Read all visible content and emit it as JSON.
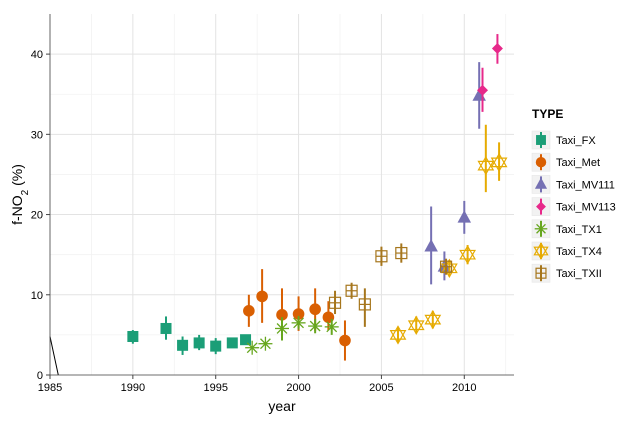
{
  "chart_data": {
    "type": "scatter",
    "title": "",
    "xlabel": "year",
    "ylabel": "f-NO",
    "ylabel_subscript": "2",
    "ylabel_suffix": " (%)",
    "xlim": [
      1985,
      2013
    ],
    "ylim": [
      0,
      45
    ],
    "xticks": [
      1985,
      1990,
      1995,
      2000,
      2005,
      2010
    ],
    "yticks": [
      0,
      10,
      20,
      30,
      40
    ],
    "grid": true,
    "legend_title": "TYPE",
    "legend_position": "right",
    "series": [
      {
        "name": "Taxi_FX",
        "color": "#1b9e77",
        "shape": "square",
        "points": [
          {
            "x": 1990,
            "y": 4.8,
            "lo": 3.9,
            "hi": 5.6
          },
          {
            "x": 1992,
            "y": 5.8,
            "lo": 4.4,
            "hi": 7.3
          },
          {
            "x": 1993,
            "y": 3.7,
            "lo": 2.5,
            "hi": 4.8
          },
          {
            "x": 1994,
            "y": 4.0,
            "lo": 3.1,
            "hi": 5.0
          },
          {
            "x": 1995,
            "y": 3.6,
            "lo": 2.6,
            "hi": 4.6
          },
          {
            "x": 1996,
            "y": 4.0,
            "lo": 3.5,
            "hi": 4.5
          },
          {
            "x": 1996.8,
            "y": 4.4,
            "lo": 4.0,
            "hi": 4.8
          }
        ]
      },
      {
        "name": "Taxi_Met",
        "color": "#d95f02",
        "shape": "circle",
        "points": [
          {
            "x": 1997,
            "y": 8.0,
            "lo": 6.0,
            "hi": 10.0
          },
          {
            "x": 1997.8,
            "y": 9.8,
            "lo": 6.5,
            "hi": 13.2
          },
          {
            "x": 1999,
            "y": 7.5,
            "lo": 4.3,
            "hi": 10.8
          },
          {
            "x": 2000,
            "y": 7.6,
            "lo": 5.5,
            "hi": 9.8
          },
          {
            "x": 2001,
            "y": 8.2,
            "lo": 5.5,
            "hi": 10.8
          },
          {
            "x": 2001.8,
            "y": 7.2,
            "lo": 5.6,
            "hi": 9.2
          },
          {
            "x": 2002.8,
            "y": 4.3,
            "lo": 1.8,
            "hi": 6.8
          }
        ]
      },
      {
        "name": "Taxi_MV111",
        "color": "#7570b3",
        "shape": "triangle",
        "points": [
          {
            "x": 2008,
            "y": 16.0,
            "lo": 11.3,
            "hi": 21.0
          },
          {
            "x": 2008.8,
            "y": 13.5,
            "lo": 11.8,
            "hi": 15.4
          },
          {
            "x": 2010,
            "y": 19.6,
            "lo": 17.6,
            "hi": 21.7
          },
          {
            "x": 2010.9,
            "y": 34.8,
            "lo": 30.7,
            "hi": 39.0
          }
        ]
      },
      {
        "name": "Taxi_MV113",
        "color": "#e7298a",
        "shape": "diamond",
        "points": [
          {
            "x": 2011.1,
            "y": 35.5,
            "lo": 32.8,
            "hi": 38.3
          },
          {
            "x": 2012,
            "y": 40.7,
            "lo": 38.8,
            "hi": 42.5
          }
        ]
      },
      {
        "name": "Taxi_TX1",
        "color": "#66a61e",
        "shape": "asterisk",
        "points": [
          {
            "x": 1997.2,
            "y": 3.4,
            "lo": null,
            "hi": null
          },
          {
            "x": 1998,
            "y": 3.9,
            "lo": null,
            "hi": null
          },
          {
            "x": 1999,
            "y": 5.8,
            "lo": 4.3,
            "hi": 7.2
          },
          {
            "x": 2000,
            "y": 6.5,
            "lo": 5.8,
            "hi": 7.3
          },
          {
            "x": 2001,
            "y": 6.1,
            "lo": 5.2,
            "hi": 7.0
          },
          {
            "x": 2002,
            "y": 6.0,
            "lo": 5.0,
            "hi": 7.0
          }
        ]
      },
      {
        "name": "Taxi_TX4",
        "color": "#e6ab02",
        "shape": "star6",
        "points": [
          {
            "x": 2006,
            "y": 5.0,
            "lo": 4.0,
            "hi": 6.0
          },
          {
            "x": 2007.1,
            "y": 6.2,
            "lo": 5.2,
            "hi": 7.3
          },
          {
            "x": 2008.1,
            "y": 6.9,
            "lo": 5.8,
            "hi": 8.0
          },
          {
            "x": 2009.1,
            "y": 13.3,
            "lo": 12.3,
            "hi": 14.3
          },
          {
            "x": 2010.2,
            "y": 15.0,
            "lo": 13.8,
            "hi": 16.2
          },
          {
            "x": 2011.3,
            "y": 26.1,
            "lo": 22.8,
            "hi": 31.2
          },
          {
            "x": 2012.1,
            "y": 26.5,
            "lo": 24.2,
            "hi": 29.0
          }
        ]
      },
      {
        "name": "Taxi_TXII",
        "color": "#a6761d",
        "shape": "squareplus",
        "points": [
          {
            "x": 2002.2,
            "y": 9.0,
            "lo": 7.6,
            "hi": 10.5
          },
          {
            "x": 2003.2,
            "y": 10.5,
            "lo": 9.5,
            "hi": 11.5
          },
          {
            "x": 2004,
            "y": 8.8,
            "lo": 6.0,
            "hi": 10.8
          },
          {
            "x": 2005,
            "y": 14.8,
            "lo": 13.6,
            "hi": 16.0
          },
          {
            "x": 2006.2,
            "y": 15.2,
            "lo": 14.0,
            "hi": 16.4
          },
          {
            "x": 2008.9,
            "y": 13.5,
            "lo": 12.5,
            "hi": 14.5
          }
        ]
      }
    ],
    "annotations": [
      {
        "type": "line",
        "color": "#000000",
        "x1": 1985,
        "y1": 4.8,
        "x2": 1985.5,
        "y2": 0
      }
    ]
  }
}
